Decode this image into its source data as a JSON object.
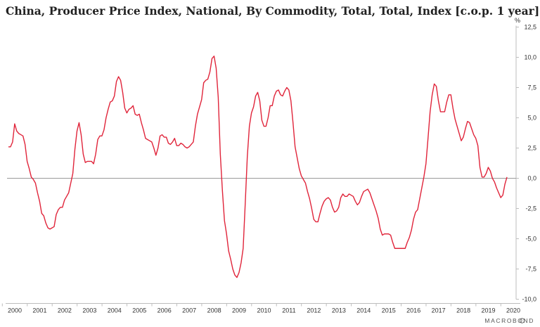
{
  "chart_data": {
    "type": "line",
    "title": "China, Producer Price Index, National, By Commodity, Total, Total, Index [c.o.p. 1 year]",
    "unit": "%",
    "ylim": [
      -10,
      12.5
    ],
    "y_ticks": [
      "12,5",
      "10,0",
      "7,5",
      "5,0",
      "2,5",
      "0,0",
      "-2,5",
      "-5,0",
      "-7,5",
      "-10,0"
    ],
    "y_tick_values": [
      12.5,
      10,
      7.5,
      5,
      2.5,
      0,
      -2.5,
      -5,
      -7.5,
      -10
    ],
    "x_ticks": [
      "2000",
      "2001",
      "2002",
      "2003",
      "2004",
      "2005",
      "2006",
      "2007",
      "2008",
      "2009",
      "2010",
      "2011",
      "2012",
      "2013",
      "2014",
      "2015",
      "2016",
      "2017",
      "2018",
      "2019",
      "2020"
    ],
    "x_range": [
      "2000-01",
      "2019-12"
    ],
    "zero_line": true,
    "grid": false,
    "line_color": "#e0243a",
    "source_logo": "MACROBOND",
    "series": [
      {
        "values": [
          [
            "2000-01",
            2.6
          ],
          [
            "2000-02",
            2.6
          ],
          [
            "2000-03",
            3.0
          ],
          [
            "2000-04",
            4.5
          ],
          [
            "2000-05",
            3.9
          ],
          [
            "2000-06",
            3.7
          ],
          [
            "2000-07",
            3.6
          ],
          [
            "2000-08",
            3.5
          ],
          [
            "2000-09",
            2.8
          ],
          [
            "2000-10",
            1.4
          ],
          [
            "2000-11",
            0.8
          ],
          [
            "2000-12",
            0.1
          ],
          [
            "2001-01",
            -0.1
          ],
          [
            "2001-02",
            -0.4
          ],
          [
            "2001-03",
            -1.2
          ],
          [
            "2001-04",
            -1.9
          ],
          [
            "2001-05",
            -2.9
          ],
          [
            "2001-06",
            -3.1
          ],
          [
            "2001-07",
            -3.7
          ],
          [
            "2001-08",
            -4.1
          ],
          [
            "2001-09",
            -4.2
          ],
          [
            "2001-10",
            -4.1
          ],
          [
            "2001-11",
            -4.0
          ],
          [
            "2001-12",
            -3.0
          ],
          [
            "2002-01",
            -2.6
          ],
          [
            "2002-02",
            -2.4
          ],
          [
            "2002-03",
            -2.4
          ],
          [
            "2002-04",
            -1.8
          ],
          [
            "2002-05",
            -1.5
          ],
          [
            "2002-06",
            -1.2
          ],
          [
            "2002-07",
            -0.4
          ],
          [
            "2002-08",
            0.4
          ],
          [
            "2002-09",
            2.4
          ],
          [
            "2002-10",
            3.9
          ],
          [
            "2002-11",
            4.6
          ],
          [
            "2002-12",
            3.6
          ],
          [
            "2003-01",
            2.0
          ],
          [
            "2003-02",
            1.3
          ],
          [
            "2003-03",
            1.4
          ],
          [
            "2003-04",
            1.4
          ],
          [
            "2003-05",
            1.4
          ],
          [
            "2003-06",
            1.2
          ],
          [
            "2003-07",
            2.0
          ],
          [
            "2003-08",
            3.2
          ],
          [
            "2003-09",
            3.5
          ],
          [
            "2003-10",
            3.5
          ],
          [
            "2003-11",
            4.0
          ],
          [
            "2003-12",
            5.0
          ],
          [
            "2004-01",
            5.7
          ],
          [
            "2004-02",
            6.3
          ],
          [
            "2004-03",
            6.4
          ],
          [
            "2004-04",
            6.8
          ],
          [
            "2004-05",
            8.0
          ],
          [
            "2004-06",
            8.4
          ],
          [
            "2004-07",
            8.1
          ],
          [
            "2004-08",
            7.1
          ],
          [
            "2004-09",
            5.8
          ],
          [
            "2004-10",
            5.4
          ],
          [
            "2004-11",
            5.7
          ],
          [
            "2004-12",
            5.8
          ],
          [
            "2005-01",
            6.0
          ],
          [
            "2005-02",
            5.3
          ],
          [
            "2005-03",
            5.2
          ],
          [
            "2005-04",
            5.3
          ],
          [
            "2005-05",
            4.6
          ],
          [
            "2005-06",
            4.0
          ],
          [
            "2005-07",
            3.3
          ],
          [
            "2005-08",
            3.2
          ],
          [
            "2005-09",
            3.1
          ],
          [
            "2005-10",
            3.0
          ],
          [
            "2005-11",
            2.5
          ],
          [
            "2005-12",
            1.9
          ],
          [
            "2006-01",
            2.5
          ],
          [
            "2006-02",
            3.5
          ],
          [
            "2006-03",
            3.6
          ],
          [
            "2006-04",
            3.4
          ],
          [
            "2006-05",
            3.4
          ],
          [
            "2006-06",
            2.9
          ],
          [
            "2006-07",
            2.8
          ],
          [
            "2006-08",
            3.0
          ],
          [
            "2006-09",
            3.3
          ],
          [
            "2006-10",
            2.7
          ],
          [
            "2006-11",
            2.7
          ],
          [
            "2006-12",
            2.9
          ],
          [
            "2007-01",
            2.8
          ],
          [
            "2007-02",
            2.6
          ],
          [
            "2007-03",
            2.5
          ],
          [
            "2007-04",
            2.6
          ],
          [
            "2007-05",
            2.8
          ],
          [
            "2007-06",
            3.0
          ],
          [
            "2007-07",
            4.3
          ],
          [
            "2007-08",
            5.3
          ],
          [
            "2007-09",
            5.9
          ],
          [
            "2007-10",
            6.5
          ],
          [
            "2007-11",
            7.9
          ],
          [
            "2007-12",
            8.1
          ],
          [
            "2008-01",
            8.2
          ],
          [
            "2008-02",
            8.8
          ],
          [
            "2008-03",
            9.9
          ],
          [
            "2008-04",
            10.1
          ],
          [
            "2008-05",
            9.1
          ],
          [
            "2008-06",
            6.7
          ],
          [
            "2008-07",
            2.0
          ],
          [
            "2008-08",
            -1.0
          ],
          [
            "2008-09",
            -3.5
          ],
          [
            "2008-10",
            -4.6
          ],
          [
            "2008-11",
            -6.0
          ],
          [
            "2008-12",
            -6.7
          ],
          [
            "2009-01",
            -7.5
          ],
          [
            "2009-02",
            -8.0
          ],
          [
            "2009-03",
            -8.2
          ],
          [
            "2009-04",
            -7.8
          ],
          [
            "2009-05",
            -7.0
          ],
          [
            "2009-06",
            -5.8
          ],
          [
            "2009-07",
            -2.1
          ],
          [
            "2009-08",
            1.8
          ],
          [
            "2009-09",
            4.3
          ],
          [
            "2009-10",
            5.4
          ],
          [
            "2009-11",
            5.9
          ],
          [
            "2009-12",
            6.8
          ],
          [
            "2010-01",
            7.1
          ],
          [
            "2010-02",
            6.4
          ],
          [
            "2010-03",
            4.8
          ],
          [
            "2010-04",
            4.3
          ],
          [
            "2010-05",
            4.3
          ],
          [
            "2010-06",
            5.0
          ],
          [
            "2010-07",
            6.0
          ],
          [
            "2010-08",
            6.0
          ],
          [
            "2010-09",
            6.8
          ],
          [
            "2010-10",
            7.2
          ],
          [
            "2010-11",
            7.3
          ],
          [
            "2010-12",
            6.9
          ],
          [
            "2011-01",
            6.8
          ],
          [
            "2011-02",
            7.2
          ],
          [
            "2011-03",
            7.5
          ],
          [
            "2011-04",
            7.3
          ],
          [
            "2011-05",
            6.4
          ],
          [
            "2011-06",
            4.6
          ],
          [
            "2011-07",
            2.6
          ],
          [
            "2011-08",
            1.7
          ],
          [
            "2011-09",
            0.8
          ],
          [
            "2011-10",
            0.2
          ],
          [
            "2011-11",
            -0.1
          ],
          [
            "2011-12",
            -0.4
          ],
          [
            "2012-01",
            -1.1
          ],
          [
            "2012-02",
            -1.7
          ],
          [
            "2012-03",
            -2.5
          ],
          [
            "2012-04",
            -3.4
          ],
          [
            "2012-05",
            -3.6
          ],
          [
            "2012-06",
            -3.6
          ],
          [
            "2012-07",
            -2.9
          ],
          [
            "2012-08",
            -2.3
          ],
          [
            "2012-09",
            -1.9
          ],
          [
            "2012-10",
            -1.7
          ],
          [
            "2012-11",
            -1.6
          ],
          [
            "2012-12",
            -1.8
          ],
          [
            "2013-01",
            -2.4
          ],
          [
            "2013-02",
            -2.8
          ],
          [
            "2013-03",
            -2.7
          ],
          [
            "2013-04",
            -2.4
          ],
          [
            "2013-05",
            -1.6
          ],
          [
            "2013-06",
            -1.3
          ],
          [
            "2013-07",
            -1.5
          ],
          [
            "2013-08",
            -1.5
          ],
          [
            "2013-09",
            -1.3
          ],
          [
            "2013-10",
            -1.4
          ],
          [
            "2013-11",
            -1.5
          ],
          [
            "2013-12",
            -1.9
          ],
          [
            "2014-01",
            -2.2
          ],
          [
            "2014-02",
            -2.0
          ],
          [
            "2014-03",
            -1.5
          ],
          [
            "2014-04",
            -1.1
          ],
          [
            "2014-05",
            -1.0
          ],
          [
            "2014-06",
            -0.9
          ],
          [
            "2014-07",
            -1.2
          ],
          [
            "2014-08",
            -1.7
          ],
          [
            "2014-09",
            -2.2
          ],
          [
            "2014-10",
            -2.7
          ],
          [
            "2014-11",
            -3.3
          ],
          [
            "2014-12",
            -4.2
          ],
          [
            "2015-01",
            -4.7
          ],
          [
            "2015-02",
            -4.6
          ],
          [
            "2015-03",
            -4.6
          ],
          [
            "2015-04",
            -4.6
          ],
          [
            "2015-05",
            -4.7
          ],
          [
            "2015-06",
            -5.3
          ],
          [
            "2015-07",
            -5.8
          ],
          [
            "2015-08",
            -5.8
          ],
          [
            "2015-09",
            -5.8
          ],
          [
            "2015-10",
            -5.8
          ],
          [
            "2015-11",
            -5.8
          ],
          [
            "2015-12",
            -5.8
          ],
          [
            "2016-01",
            -5.3
          ],
          [
            "2016-02",
            -4.9
          ],
          [
            "2016-03",
            -4.3
          ],
          [
            "2016-04",
            -3.4
          ],
          [
            "2016-05",
            -2.8
          ],
          [
            "2016-06",
            -2.6
          ],
          [
            "2016-07",
            -1.7
          ],
          [
            "2016-08",
            -0.8
          ],
          [
            "2016-09",
            0.1
          ],
          [
            "2016-10",
            1.2
          ],
          [
            "2016-11",
            3.3
          ],
          [
            "2016-12",
            5.5
          ],
          [
            "2017-01",
            6.9
          ],
          [
            "2017-02",
            7.8
          ],
          [
            "2017-03",
            7.6
          ],
          [
            "2017-04",
            6.4
          ],
          [
            "2017-05",
            5.5
          ],
          [
            "2017-06",
            5.5
          ],
          [
            "2017-07",
            5.5
          ],
          [
            "2017-08",
            6.3
          ],
          [
            "2017-09",
            6.9
          ],
          [
            "2017-10",
            6.9
          ],
          [
            "2017-11",
            5.8
          ],
          [
            "2017-12",
            4.9
          ],
          [
            "2018-01",
            4.3
          ],
          [
            "2018-02",
            3.7
          ],
          [
            "2018-03",
            3.1
          ],
          [
            "2018-04",
            3.4
          ],
          [
            "2018-05",
            4.1
          ],
          [
            "2018-06",
            4.7
          ],
          [
            "2018-07",
            4.6
          ],
          [
            "2018-08",
            4.1
          ],
          [
            "2018-09",
            3.6
          ],
          [
            "2018-10",
            3.3
          ],
          [
            "2018-11",
            2.7
          ],
          [
            "2018-12",
            0.9
          ],
          [
            "2019-01",
            0.1
          ],
          [
            "2019-02",
            0.1
          ],
          [
            "2019-03",
            0.4
          ],
          [
            "2019-04",
            0.9
          ],
          [
            "2019-05",
            0.6
          ],
          [
            "2019-06",
            0.0
          ],
          [
            "2019-07",
            -0.3
          ],
          [
            "2019-08",
            -0.8
          ],
          [
            "2019-09",
            -1.2
          ],
          [
            "2019-10",
            -1.6
          ],
          [
            "2019-11",
            -1.4
          ],
          [
            "2019-12",
            -0.5
          ],
          [
            "2020-01",
            0.1
          ]
        ]
      }
    ]
  }
}
